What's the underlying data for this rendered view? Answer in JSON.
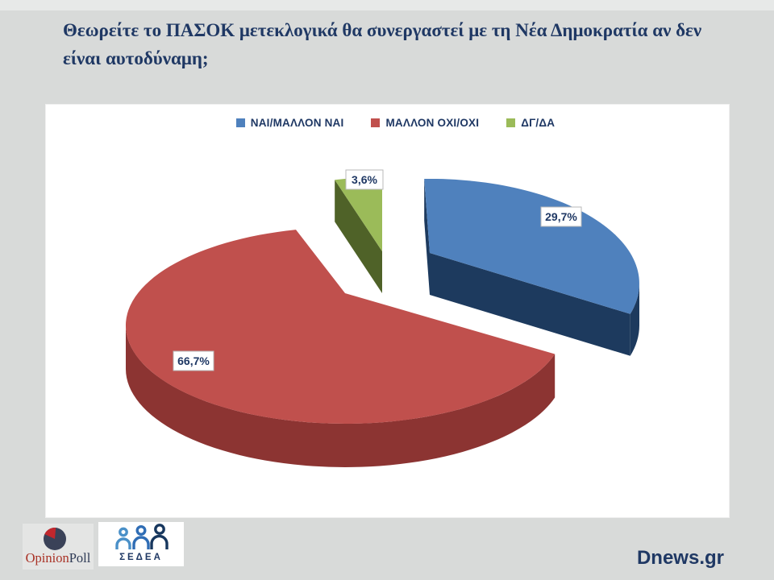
{
  "header": {
    "title_line1": "Θεωρείτε το ΠΑΣΟΚ μετεκλογικά θα συνεργαστεί με τη Νέα Δημοκρατία αν δεν",
    "title_line2": "είναι αυτοδύναμη;"
  },
  "chart_data": {
    "type": "pie",
    "style": "3d-exploded",
    "direction": "clockwise",
    "start_angle_deg": 0,
    "legend_position": "top",
    "title": "Θεωρείτε το ΠΑΣΟΚ μετεκλογικά θα συνεργαστεί με τη Νέα Δημοκρατία αν δεν είναι αυτοδύναμη;",
    "slices": [
      {
        "label": "ΝΑΙ/ΜΑΛΛΟΝ ΝΑΙ",
        "value": 29.7,
        "value_label": "29,7%",
        "color": "#4f81bd",
        "side_color": "#1d3a5e"
      },
      {
        "label": "ΜΑΛΛΟΝ ΟΧΙ/ΟΧΙ",
        "value": 66.7,
        "value_label": "66,7%",
        "color": "#c0504d",
        "side_color": "#8c3432"
      },
      {
        "label": "ΔΓ/ΔΑ",
        "value": 3.6,
        "value_label": "3,6%",
        "color": "#9bbb59",
        "side_color": "#4f6228"
      }
    ]
  },
  "footer": {
    "opinion_poll_logo": {
      "text_primary": "Opinion",
      "text_secondary": "Poll",
      "primary_color": "#a93226",
      "secondary_color": "#2e3a55",
      "pie_circle_color": "#3a4258",
      "pie_wedge_color": "#c1272d"
    },
    "sedea_logo": {
      "text": "ΣΕΔΕΑ",
      "color": "#1f3864",
      "figure_colors": [
        "#4a90c8",
        "#2f6db5",
        "#17375e"
      ]
    },
    "site": "Dnews.gr"
  },
  "colors": {
    "page_bg": "#d8dad9",
    "panel_bg": "#ffffff",
    "title_text": "#1f3864",
    "value_label_text": "#1f3864",
    "value_label_border": "#b9b9b9"
  }
}
